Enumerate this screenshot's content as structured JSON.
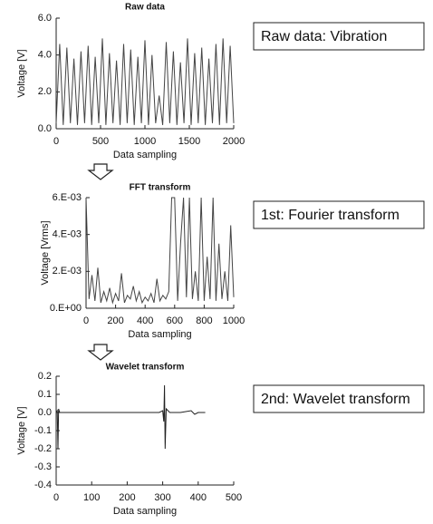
{
  "chart_data": [
    {
      "type": "line",
      "title": "Raw data",
      "x_label": "Data sampling",
      "y_label": "Voltage [V]",
      "annotation": "Raw data: Vibration",
      "color": "#444444",
      "x": [
        0,
        40,
        80,
        120,
        160,
        200,
        240,
        280,
        320,
        360,
        400,
        440,
        480,
        520,
        560,
        600,
        640,
        680,
        720,
        760,
        800,
        840,
        880,
        920,
        960,
        1000,
        1040,
        1080,
        1120,
        1160,
        1200,
        1240,
        1280,
        1320,
        1360,
        1400,
        1440,
        1480,
        1520,
        1560,
        1600,
        1640,
        1680,
        1720,
        1760,
        1800,
        1840,
        1880,
        1920,
        1960,
        2000
      ],
      "values": [
        0.3,
        4.6,
        0.2,
        4.4,
        0.3,
        3.8,
        0.2,
        4.2,
        0.3,
        4.5,
        0.2,
        3.9,
        0.3,
        4.9,
        0.2,
        4.1,
        0.3,
        3.7,
        0.2,
        4.6,
        0.3,
        4.3,
        0.2,
        3.9,
        0.3,
        4.8,
        0.2,
        4.0,
        0.3,
        1.8,
        0.2,
        4.7,
        0.3,
        4.2,
        0.2,
        3.6,
        0.3,
        4.9,
        0.2,
        4.1,
        0.3,
        4.4,
        0.2,
        3.8,
        0.3,
        4.6,
        0.2,
        4.9,
        0.3,
        4.5,
        0.3
      ],
      "xlim": [
        0,
        2000
      ],
      "xticks": [
        0,
        500,
        1000,
        1500,
        2000
      ],
      "ylim": [
        0,
        6
      ],
      "yticks": [
        {
          "value": 0,
          "label": "0.0"
        },
        {
          "value": 2,
          "label": "2.0"
        },
        {
          "value": 4,
          "label": "4.0"
        },
        {
          "value": 6,
          "label": "6.0"
        }
      ]
    },
    {
      "type": "line",
      "title": "FFT transform",
      "x_label": "Data sampling",
      "y_label": "Voltage [Vrms]",
      "annotation": "1st: Fourier transform",
      "color": "#444444",
      "x": [
        0,
        20,
        40,
        60,
        80,
        100,
        120,
        140,
        160,
        180,
        200,
        220,
        240,
        260,
        280,
        300,
        320,
        340,
        360,
        380,
        400,
        420,
        440,
        460,
        480,
        500,
        520,
        540,
        560,
        580,
        600,
        620,
        640,
        660,
        680,
        700,
        720,
        740,
        760,
        780,
        800,
        820,
        840,
        860,
        880,
        900,
        920,
        940,
        960,
        980,
        1000
      ],
      "values": [
        0.006,
        0.0005,
        0.0018,
        0.0004,
        0.0022,
        0.0003,
        0.0009,
        0.0004,
        0.0011,
        0.0003,
        0.0008,
        0.0004,
        0.0019,
        0.0003,
        0.0007,
        0.0005,
        0.0012,
        0.0004,
        0.0009,
        0.0003,
        0.0006,
        0.0004,
        0.0008,
        0.0003,
        0.0016,
        0.0004,
        0.0007,
        0.0005,
        0.0009,
        0.006,
        0.006,
        0.0004,
        0.0035,
        0.006,
        0.0006,
        0.006,
        0.0005,
        0.002,
        0.0004,
        0.006,
        0.0004,
        0.0028,
        0.0005,
        0.006,
        0.0004,
        0.0035,
        0.0005,
        0.002,
        0.0004,
        0.0045,
        0.0006
      ],
      "xlim": [
        0,
        1000
      ],
      "xticks": [
        0,
        200,
        400,
        600,
        800,
        1000
      ],
      "ylim": [
        0,
        0.006
      ],
      "yticks": [
        {
          "value": 0,
          "label": "0.E+00"
        },
        {
          "value": 0.002,
          "label": "2.E-03"
        },
        {
          "value": 0.004,
          "label": "4.E-03"
        },
        {
          "value": 0.006,
          "label": "6.E-03"
        }
      ]
    },
    {
      "type": "line",
      "title": "Wavelet transform",
      "x_label": "Data sampling",
      "y_label": "Voltage [V]",
      "annotation": "2nd: Wavelet transform",
      "color": "#222222",
      "x": [
        0,
        3,
        5,
        7,
        10,
        50,
        100,
        150,
        200,
        250,
        290,
        300,
        303,
        305,
        307,
        310,
        320,
        350,
        380,
        390,
        400,
        410,
        420
      ],
      "values": [
        0,
        0.01,
        -0.2,
        0.02,
        0,
        0,
        0,
        0,
        0,
        0,
        0,
        0.01,
        -0.05,
        0.15,
        -0.2,
        0.02,
        0,
        0,
        0.01,
        -0.01,
        0,
        0,
        0
      ],
      "xlim": [
        0,
        500
      ],
      "xticks": [
        0,
        100,
        200,
        300,
        400,
        500
      ],
      "ylim": [
        -0.4,
        0.2
      ],
      "yticks": [
        -0.4,
        -0.3,
        -0.2,
        -0.1,
        {
          "value": 0,
          "label": "0.0"
        },
        0.1,
        0.2
      ]
    }
  ]
}
